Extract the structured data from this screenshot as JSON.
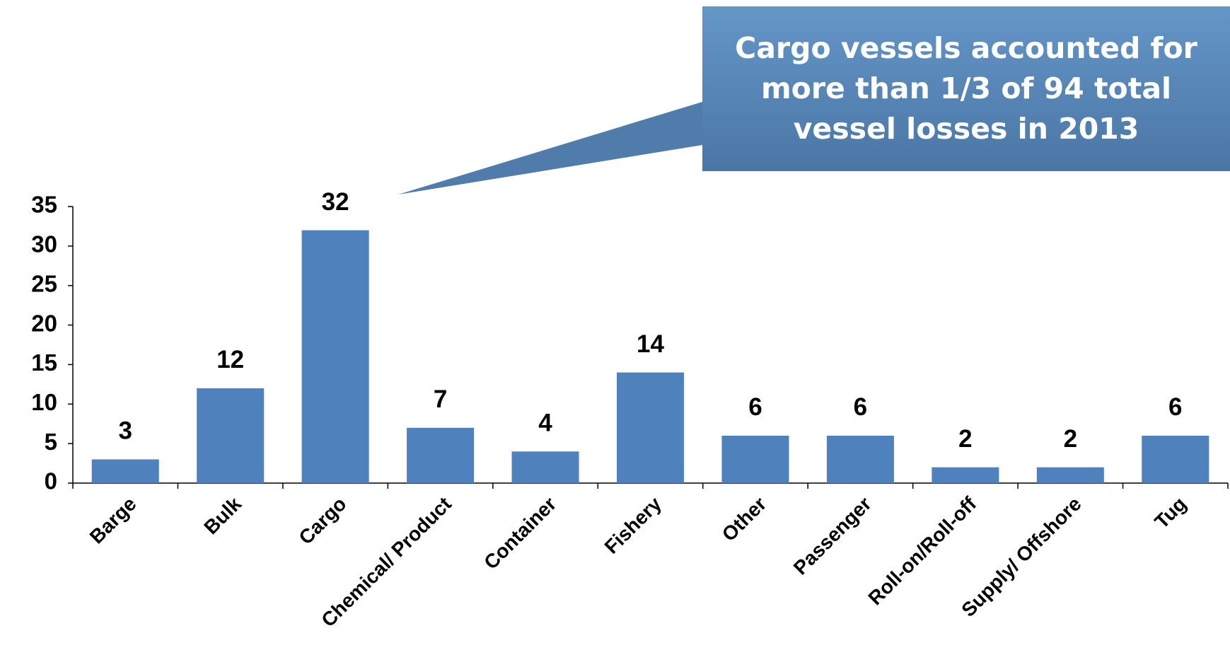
{
  "chart_data": {
    "type": "bar",
    "annotation": "Cargo vessels accounted for more than 1/3 of 94 total vessel losses in 2013",
    "categories": [
      "Barge",
      "Bulk",
      "Cargo",
      "Chemical/ Product",
      "Container",
      "Fishery",
      "Other",
      "Passenger",
      "Roll-on/Roll-off",
      "Supply/ Offshore",
      "Tug"
    ],
    "values": [
      3,
      12,
      32,
      7,
      4,
      14,
      6,
      6,
      2,
      2,
      6
    ],
    "color": "#4f81bd",
    "data_labels": true,
    "ylim": [
      0,
      35
    ],
    "yticks": [
      0,
      5,
      10,
      15,
      20,
      25,
      30,
      35
    ],
    "grid": false
  }
}
